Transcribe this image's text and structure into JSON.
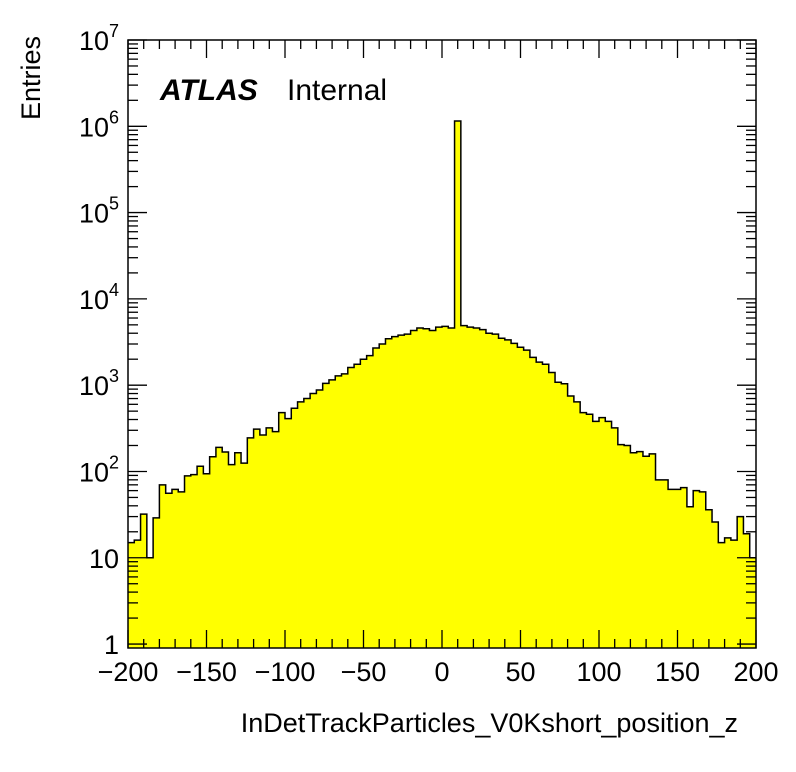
{
  "chart_data": {
    "type": "bar",
    "style": "histogram",
    "fill_color": "#ffff00",
    "line_color": "#000000",
    "xlabel": "InDetTrackParticles_V0Kshort_position_z",
    "ylabel": "Entries",
    "xlim": [
      -200,
      200
    ],
    "ylim": [
      0.9,
      10000000
    ],
    "yscale": "log",
    "grid": false,
    "x_ticks": [
      "−200",
      "−150",
      "−100",
      "−50",
      "0",
      "50",
      "100",
      "150",
      "200"
    ],
    "y_tick_values": [
      1,
      10,
      100,
      1000,
      10000,
      100000,
      1000000,
      10000000
    ],
    "y_tick_labels": [
      {
        "base": "1",
        "exp": ""
      },
      {
        "base": "10",
        "exp": ""
      },
      {
        "base": "10",
        "exp": "2"
      },
      {
        "base": "10",
        "exp": "3"
      },
      {
        "base": "10",
        "exp": "4"
      },
      {
        "base": "10",
        "exp": "5"
      },
      {
        "base": "10",
        "exp": "6"
      },
      {
        "base": "10",
        "exp": "7"
      }
    ],
    "bin_edges_start": -200,
    "bin_width": 4,
    "values": [
      15,
      16,
      32,
      10,
      29,
      70,
      56,
      62,
      58,
      89,
      92,
      115,
      94,
      148,
      190,
      168,
      120,
      165,
      125,
      245,
      310,
      265,
      320,
      290,
      480,
      410,
      540,
      640,
      700,
      800,
      880,
      1050,
      1150,
      1280,
      1350,
      1600,
      1750,
      2000,
      2200,
      2700,
      3000,
      3450,
      3650,
      3800,
      3900,
      4300,
      4600,
      4500,
      4300,
      4700,
      4800,
      4600,
      1150000,
      4900,
      4700,
      4600,
      4400,
      4000,
      3900,
      3500,
      3350,
      3050,
      2750,
      2550,
      2100,
      1850,
      1750,
      1400,
      1080,
      1040,
      750,
      640,
      480,
      460,
      380,
      420,
      380,
      320,
      205,
      200,
      165,
      170,
      150,
      160,
      80,
      80,
      62,
      62,
      65,
      39,
      60,
      58,
      36,
      26,
      15,
      17,
      16,
      30,
      19,
      10
    ]
  },
  "label": {
    "atlas": "ATLAS",
    "internal": "Internal"
  }
}
